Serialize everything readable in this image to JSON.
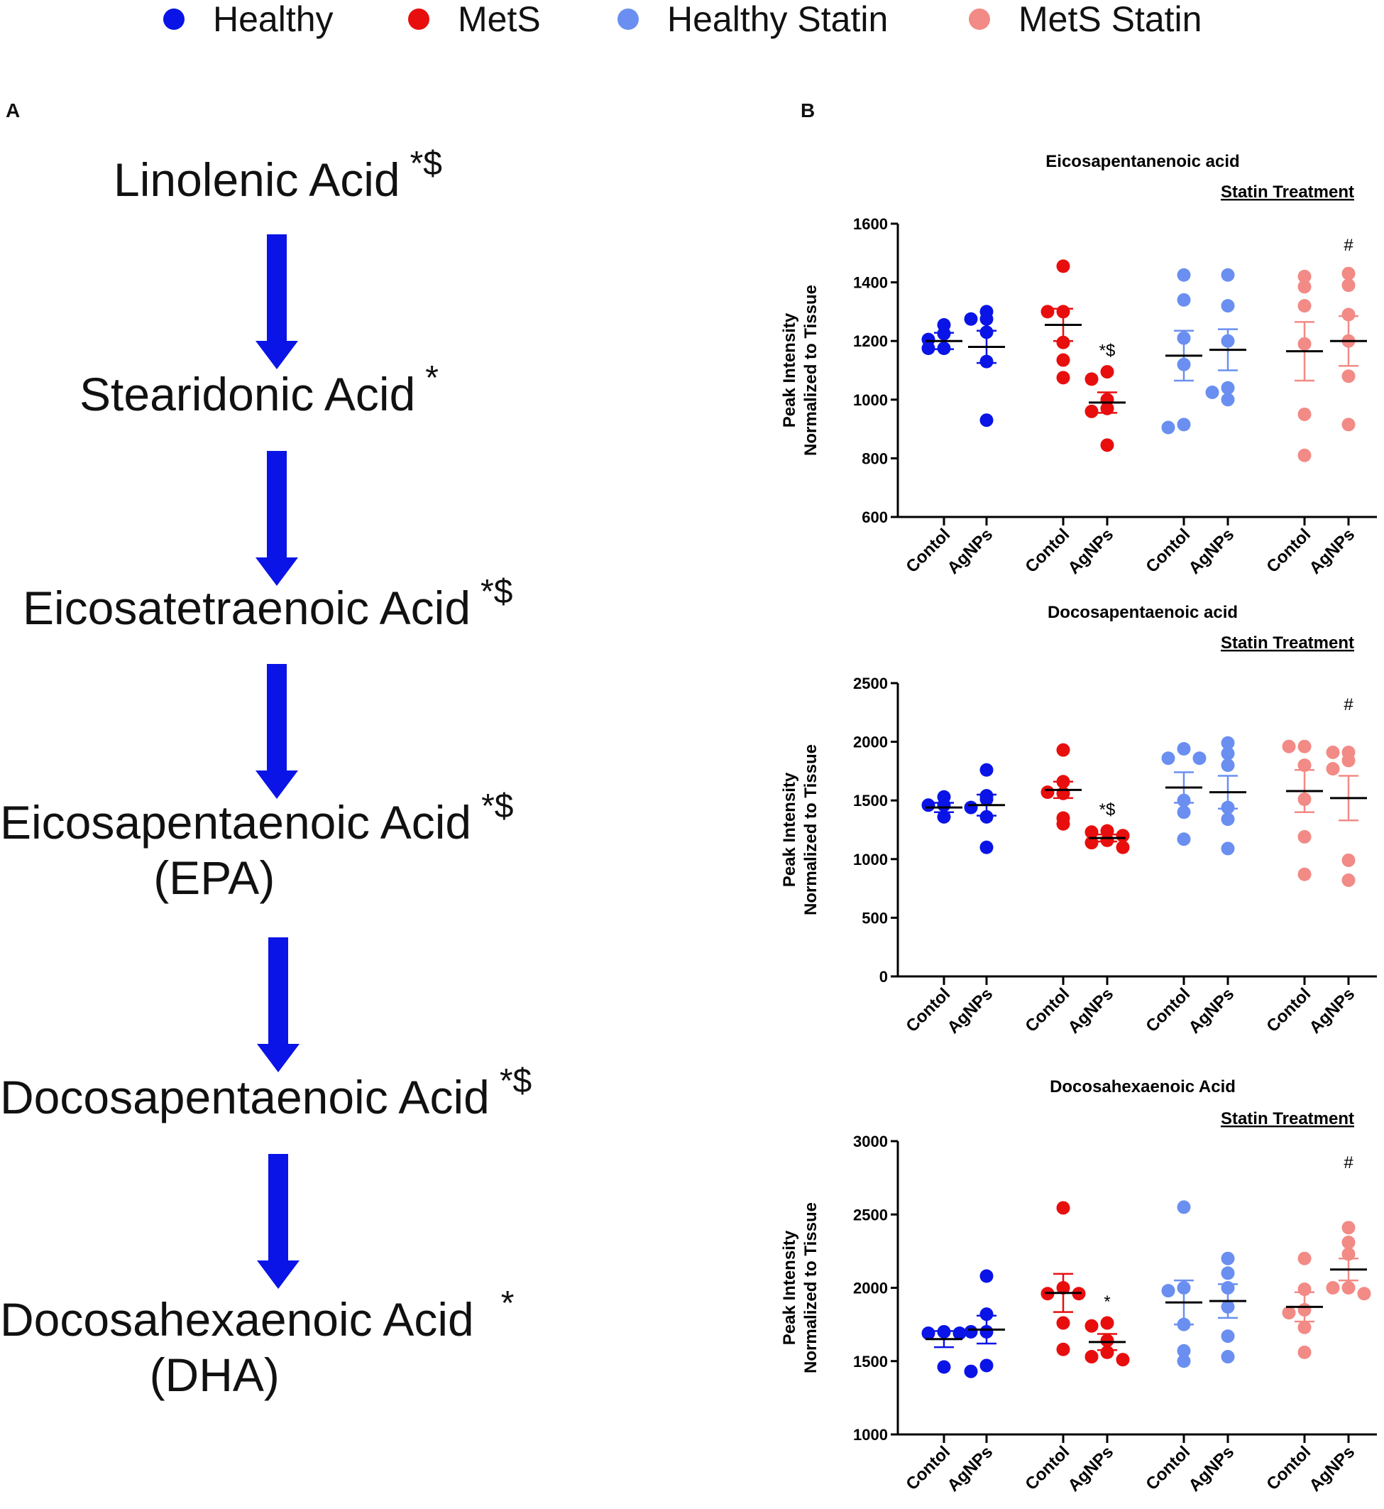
{
  "legend": [
    {
      "label": "Healthy",
      "color": "#0a14e6"
    },
    {
      "label": "MetS",
      "color": "#e80e0e"
    },
    {
      "label": "Healthy Statin",
      "color": "#6a8ff0"
    },
    {
      "label": "MetS Statin",
      "color": "#f28a86"
    }
  ],
  "panel_a_label": "A",
  "panel_b_label": "B",
  "pathway": [
    {
      "name": "Linolenic Acid",
      "mark": "*$",
      "abbr": ""
    },
    {
      "name": "Stearidonic Acid",
      "mark": "*",
      "abbr": ""
    },
    {
      "name": "Eicosatetraenoic Acid",
      "mark": "*$",
      "abbr": ""
    },
    {
      "name": "Eicosapentaenoic Acid",
      "mark": "*$",
      "abbr": "(EPA)"
    },
    {
      "name": "Docosapentaenoic Acid",
      "mark": "*$",
      "abbr": ""
    },
    {
      "name": "Docosahexaenoic Acid",
      "mark": "*",
      "abbr": "(DHA)"
    }
  ],
  "chart_data": [
    {
      "type": "scatter",
      "title": "Eicosapentanenoic acid",
      "subtitle": "Statin Treatment",
      "ylabel_line1": "Peak Intensity",
      "ylabel_line2": "Normalized to Tissue",
      "ylim": [
        600,
        1600
      ],
      "yticks": [
        600,
        800,
        1000,
        1200,
        1400,
        1600
      ],
      "categories": [
        "Contol",
        "AgNPs",
        "Contol",
        "AgNPs",
        "Contol",
        "AgNPs",
        "Contol",
        "AgNPs"
      ],
      "groups": [
        {
          "series": "Healthy",
          "color": "#0a14e6",
          "mean": 1200,
          "sem": 28,
          "points": [
            1255,
            1225,
            1175,
            1175,
            1205
          ],
          "sig": ""
        },
        {
          "series": "Healthy",
          "color": "#0a14e6",
          "mean": 1180,
          "sem": 55,
          "points": [
            1300,
            1275,
            1230,
            1275,
            1130,
            930
          ],
          "sig": ""
        },
        {
          "series": "MetS",
          "color": "#e80e0e",
          "mean": 1255,
          "sem": 55,
          "points": [
            1455,
            1300,
            1300,
            1195,
            1135,
            1075
          ],
          "sig": ""
        },
        {
          "series": "MetS",
          "color": "#e80e0e",
          "mean": 990,
          "sem": 35,
          "points": [
            1095,
            1070,
            1000,
            970,
            960,
            845
          ],
          "sig": "*$"
        },
        {
          "series": "Healthy Statin",
          "color": "#6a8ff0",
          "mean": 1150,
          "sem": 85,
          "points": [
            1425,
            1340,
            1210,
            1120,
            915,
            905
          ],
          "sig": ""
        },
        {
          "series": "Healthy Statin",
          "color": "#6a8ff0",
          "mean": 1170,
          "sem": 70,
          "points": [
            1425,
            1320,
            1200,
            1040,
            1025,
            1000
          ],
          "sig": ""
        },
        {
          "series": "MetS Statin",
          "color": "#f28a86",
          "mean": 1165,
          "sem": 100,
          "points": [
            1420,
            1385,
            1320,
            1190,
            950,
            810
          ],
          "sig": ""
        },
        {
          "series": "MetS Statin",
          "color": "#f28a86",
          "mean": 1200,
          "sem": 85,
          "points": [
            1430,
            1390,
            1290,
            1200,
            1080,
            915
          ],
          "sig": "#"
        }
      ]
    },
    {
      "type": "scatter",
      "title": "Docosapentaenoic acid",
      "subtitle": "Statin Treatment",
      "ylabel_line1": "Peak Intensity",
      "ylabel_line2": "Normalized to Tissue",
      "ylim": [
        0,
        2500
      ],
      "yticks": [
        0,
        500,
        1000,
        1500,
        2000,
        2500
      ],
      "categories": [
        "Contol",
        "AgNPs",
        "Contol",
        "AgNPs",
        "Contol",
        "AgNPs",
        "Contol",
        "AgNPs"
      ],
      "groups": [
        {
          "series": "Healthy",
          "color": "#0a14e6",
          "mean": 1440,
          "sem": 40,
          "points": [
            1530,
            1460,
            1460,
            1360
          ],
          "sig": ""
        },
        {
          "series": "Healthy",
          "color": "#0a14e6",
          "mean": 1460,
          "sem": 90,
          "points": [
            1760,
            1540,
            1510,
            1440,
            1360,
            1100
          ],
          "sig": ""
        },
        {
          "series": "MetS",
          "color": "#e80e0e",
          "mean": 1590,
          "sem": 70,
          "points": [
            1930,
            1660,
            1560,
            1570,
            1350,
            1300
          ],
          "sig": ""
        },
        {
          "series": "MetS",
          "color": "#e80e0e",
          "mean": 1180,
          "sem": 30,
          "points": [
            1240,
            1230,
            1200,
            1160,
            1140,
            1100
          ],
          "sig": "*$"
        },
        {
          "series": "Healthy Statin",
          "color": "#6a8ff0",
          "mean": 1610,
          "sem": 130,
          "points": [
            1940,
            1860,
            1860,
            1500,
            1400,
            1170
          ],
          "sig": ""
        },
        {
          "series": "Healthy Statin",
          "color": "#6a8ff0",
          "mean": 1570,
          "sem": 140,
          "points": [
            1990,
            1900,
            1800,
            1440,
            1340,
            1090
          ],
          "sig": ""
        },
        {
          "series": "MetS Statin",
          "color": "#f28a86",
          "mean": 1580,
          "sem": 180,
          "points": [
            1960,
            1960,
            1800,
            1510,
            1190,
            870
          ],
          "sig": ""
        },
        {
          "series": "MetS Statin",
          "color": "#f28a86",
          "mean": 1520,
          "sem": 190,
          "points": [
            1910,
            1910,
            1840,
            1770,
            990,
            820
          ],
          "sig": "#"
        }
      ]
    },
    {
      "type": "scatter",
      "title": "Docosahexaenoic Acid",
      "subtitle": "Statin Treatment",
      "ylabel_line1": "Peak Intensity",
      "ylabel_line2": "Normalized to Tissue",
      "ylim": [
        1000,
        3000
      ],
      "yticks": [
        1000,
        1500,
        2000,
        2500,
        3000
      ],
      "categories": [
        "Contol",
        "AgNPs",
        "Contol",
        "AgNPs",
        "Contol",
        "AgNPs",
        "Contol",
        "AgNPs"
      ],
      "groups": [
        {
          "series": "Healthy",
          "color": "#0a14e6",
          "mean": 1650,
          "sem": 55,
          "points": [
            1700,
            1690,
            1690,
            1460
          ],
          "sig": ""
        },
        {
          "series": "Healthy",
          "color": "#0a14e6",
          "mean": 1715,
          "sem": 95,
          "points": [
            2080,
            1820,
            1700,
            1700,
            1470,
            1430
          ],
          "sig": ""
        },
        {
          "series": "MetS",
          "color": "#e80e0e",
          "mean": 1965,
          "sem": 130,
          "points": [
            2545,
            2000,
            1960,
            1960,
            1760,
            1580
          ],
          "sig": ""
        },
        {
          "series": "MetS",
          "color": "#e80e0e",
          "mean": 1630,
          "sem": 55,
          "points": [
            1760,
            1740,
            1640,
            1560,
            1530,
            1510
          ],
          "sig": "*"
        },
        {
          "series": "Healthy Statin",
          "color": "#6a8ff0",
          "mean": 1900,
          "sem": 150,
          "points": [
            2550,
            2000,
            1980,
            1750,
            1570,
            1500
          ],
          "sig": ""
        },
        {
          "series": "Healthy Statin",
          "color": "#6a8ff0",
          "mean": 1910,
          "sem": 115,
          "points": [
            2200,
            2100,
            2000,
            1870,
            1670,
            1530
          ],
          "sig": ""
        },
        {
          "series": "MetS Statin",
          "color": "#f28a86",
          "mean": 1870,
          "sem": 100,
          "points": [
            2200,
            1990,
            1850,
            1830,
            1730,
            1560
          ],
          "sig": ""
        },
        {
          "series": "MetS Statin",
          "color": "#f28a86",
          "mean": 2125,
          "sem": 75,
          "points": [
            2410,
            2310,
            2230,
            2000,
            2000,
            1960
          ],
          "sig": "#"
        }
      ]
    }
  ]
}
